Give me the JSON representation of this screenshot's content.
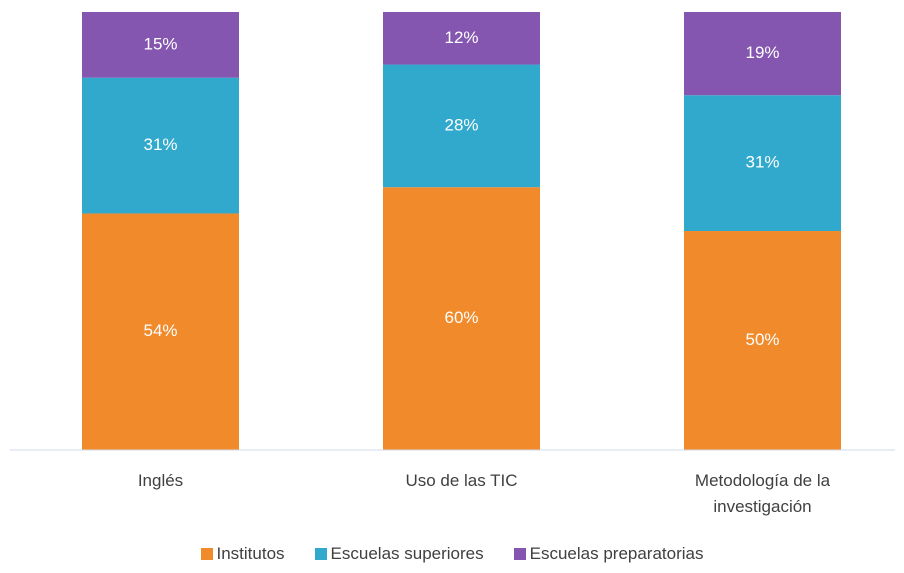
{
  "chart_data": {
    "type": "stacked_bar",
    "categories": [
      "Inglés",
      "Uso de las TIC",
      "Metodología de la investigación"
    ],
    "series": [
      {
        "name": "Institutos",
        "color": "#f08a2a",
        "values": [
          54,
          60,
          50
        ],
        "value_labels": [
          "54%",
          "60%",
          "50%"
        ]
      },
      {
        "name": "Escuelas superiores",
        "color": "#31a9cc",
        "values": [
          31,
          28,
          31
        ],
        "value_labels": [
          "31%",
          "28%",
          "31%"
        ]
      },
      {
        "name": "Escuelas preparatorias",
        "color": "#8456b0",
        "values": [
          15,
          12,
          19
        ],
        "value_labels": [
          "15%",
          "12%",
          "19%"
        ]
      }
    ],
    "ylim": [
      0,
      100
    ],
    "legend": "bottom"
  }
}
